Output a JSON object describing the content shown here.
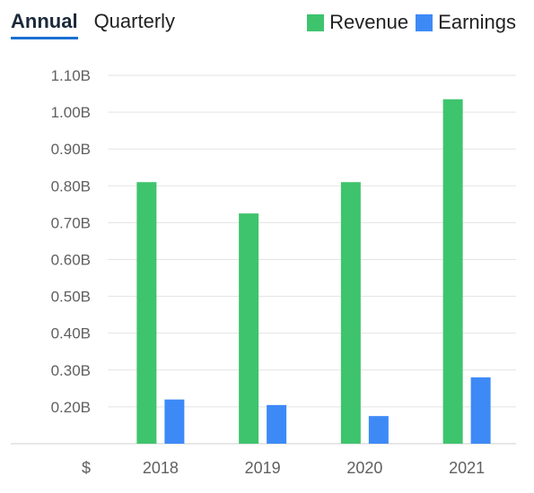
{
  "tabs": [
    {
      "label": "Annual",
      "active": true
    },
    {
      "label": "Quarterly",
      "active": false
    }
  ],
  "legend": [
    {
      "label": "Revenue",
      "color": "#3ec46d"
    },
    {
      "label": "Earnings",
      "color": "#3d8af7"
    }
  ],
  "chart_data": {
    "type": "bar",
    "categories": [
      "2018",
      "2019",
      "2020",
      "2021"
    ],
    "series": [
      {
        "name": "Revenue",
        "color": "#3ec46d",
        "values": [
          0.81,
          0.725,
          0.81,
          1.035
        ]
      },
      {
        "name": "Earnings",
        "color": "#3d8af7",
        "values": [
          0.22,
          0.205,
          0.175,
          0.28
        ]
      }
    ],
    "yticks": [
      "1.10B",
      "1.00B",
      "0.90B",
      "0.80B",
      "0.70B",
      "0.60B",
      "0.50B",
      "0.40B",
      "0.30B",
      "0.20B"
    ],
    "ytick_values": [
      1.1,
      1.0,
      0.9,
      0.8,
      0.7,
      0.6,
      0.5,
      0.4,
      0.3,
      0.2
    ],
    "ylim": [
      0.1,
      1.1
    ],
    "yunit_label": "$",
    "grid": true,
    "legend_position": "top-right"
  }
}
